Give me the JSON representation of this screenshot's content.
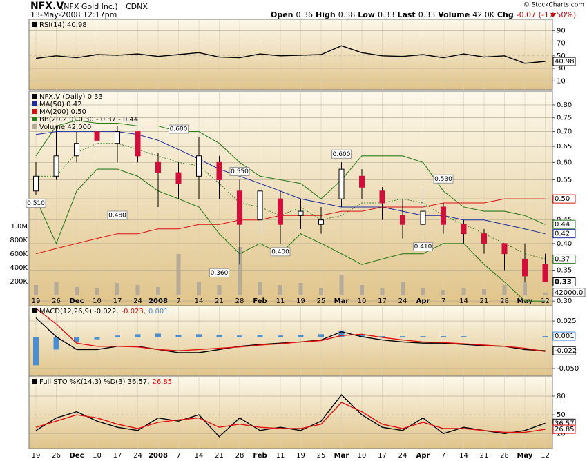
{
  "header": {
    "symbol": "NFX.V",
    "name": "(NFX Gold Inc.)",
    "exchange": "CDNX",
    "timestamp": "13-May-2008 12:17pm",
    "quote": [
      "Open",
      "0.36",
      "High",
      "0.38",
      "Low",
      "0.33",
      "Last",
      "0.33",
      "Volume",
      "42.0K",
      "Chg",
      "-0.07 (-17.50%)"
    ],
    "copyright": "© StockCharts.com"
  },
  "chart_data": [
    {
      "type": "line",
      "series": [
        {
          "name": "RSI(14) 40.98",
          "color": "#000000",
          "values": [
            46,
            50,
            47,
            52,
            51,
            53,
            49,
            52,
            55,
            48,
            47,
            53,
            50,
            51,
            52,
            66,
            55,
            50,
            49,
            52,
            47,
            53,
            48,
            50,
            38,
            41
          ]
        }
      ],
      "ylim": [
        -4,
        108
      ],
      "yticks": [
        10,
        30,
        50,
        70,
        90
      ],
      "grid": true,
      "value_boxes": [
        {
          "value": 40.98,
          "label": "40.98"
        }
      ]
    },
    {
      "type": "candlestick",
      "title": "NFX.V (Daily) 0.33",
      "log_scale": true,
      "categories": [
        "19",
        "26",
        "Dec",
        "10",
        "17",
        "24",
        "2008",
        "7",
        "14",
        "21",
        "28",
        "Feb",
        "11",
        "19",
        "25",
        "Mar",
        "10",
        "17",
        "24",
        "Apr",
        "7",
        "14",
        "21",
        "28",
        "May",
        "12"
      ],
      "open": [
        0.52,
        0.56,
        0.62,
        0.7,
        0.66,
        0.7,
        0.6,
        0.57,
        0.56,
        0.6,
        0.52,
        0.45,
        0.5,
        0.46,
        0.44,
        0.5,
        0.56,
        0.52,
        0.46,
        0.44,
        0.48,
        0.44,
        0.42,
        0.4,
        0.37,
        0.36
      ],
      "high": [
        0.6,
        0.72,
        0.7,
        0.72,
        0.72,
        0.7,
        0.63,
        0.6,
        0.68,
        0.62,
        0.55,
        0.55,
        0.52,
        0.5,
        0.48,
        0.6,
        0.58,
        0.53,
        0.5,
        0.53,
        0.49,
        0.45,
        0.43,
        0.4,
        0.4,
        0.38
      ],
      "low": [
        0.51,
        0.55,
        0.6,
        0.64,
        0.6,
        0.6,
        0.48,
        0.5,
        0.5,
        0.5,
        0.36,
        0.42,
        0.4,
        0.43,
        0.42,
        0.48,
        0.5,
        0.45,
        0.41,
        0.41,
        0.42,
        0.4,
        0.38,
        0.35,
        0.33,
        0.33
      ],
      "close": [
        0.56,
        0.62,
        0.66,
        0.67,
        0.7,
        0.62,
        0.57,
        0.54,
        0.62,
        0.55,
        0.44,
        0.52,
        0.44,
        0.47,
        0.45,
        0.58,
        0.53,
        0.49,
        0.44,
        0.47,
        0.44,
        0.42,
        0.4,
        0.38,
        0.34,
        0.33
      ],
      "up_color": "#ffffff",
      "down_color": "#d0103a",
      "series": [
        {
          "name": "MA(50) 0.42",
          "color": "#1a2a9c",
          "values": [
            0.69,
            0.7,
            0.7,
            0.7,
            0.7,
            0.69,
            0.67,
            0.64,
            0.61,
            0.58,
            0.56,
            0.54,
            0.52,
            0.5,
            0.49,
            0.48,
            0.48,
            0.48,
            0.47,
            0.46,
            0.46,
            0.45,
            0.45,
            0.44,
            0.43,
            0.42
          ]
        },
        {
          "name": "MA(200) 0.50",
          "color": "#d81010",
          "values": [
            0.38,
            0.39,
            0.4,
            0.41,
            0.42,
            0.42,
            0.43,
            0.43,
            0.44,
            0.44,
            0.45,
            0.45,
            0.46,
            0.46,
            0.46,
            0.47,
            0.47,
            0.48,
            0.48,
            0.48,
            0.49,
            0.49,
            0.49,
            0.5,
            0.5,
            0.5
          ]
        }
      ],
      "bands": {
        "name": "BB(20,2.0) 0.30 - 0.37 - 0.44",
        "color": "#2e7d1f",
        "upper": [
          0.62,
          0.72,
          0.74,
          0.73,
          0.73,
          0.72,
          0.72,
          0.7,
          0.7,
          0.66,
          0.6,
          0.56,
          0.55,
          0.54,
          0.5,
          0.55,
          0.62,
          0.62,
          0.62,
          0.6,
          0.52,
          0.48,
          0.47,
          0.47,
          0.46,
          0.44
        ],
        "middle": [
          0.56,
          0.56,
          0.63,
          0.66,
          0.66,
          0.64,
          0.62,
          0.6,
          0.59,
          0.54,
          0.49,
          0.48,
          0.46,
          0.48,
          0.45,
          0.46,
          0.49,
          0.49,
          0.5,
          0.49,
          0.46,
          0.44,
          0.42,
          0.4,
          0.38,
          0.37
        ],
        "lower": [
          0.5,
          0.4,
          0.52,
          0.58,
          0.58,
          0.56,
          0.52,
          0.5,
          0.48,
          0.42,
          0.38,
          0.4,
          0.38,
          0.42,
          0.4,
          0.38,
          0.36,
          0.37,
          0.38,
          0.38,
          0.4,
          0.4,
          0.36,
          0.33,
          0.3,
          0.3
        ]
      },
      "volume": {
        "name": "Volume 42,000",
        "color": "#b5ab98",
        "values": [
          150000,
          200000,
          120000,
          100000,
          180000,
          150000,
          120000,
          600000,
          200000,
          150000,
          700000,
          200000,
          150000,
          180000,
          100000,
          300000,
          150000,
          100000,
          200000,
          100000,
          80000,
          100000,
          90000,
          150000,
          200000,
          42000
        ],
        "ylim": [
          0,
          2960000
        ],
        "yticks": [
          {
            "value": 200000,
            "label": "200K"
          },
          {
            "value": 400000,
            "label": "400K"
          },
          {
            "value": 600000,
            "label": "600K"
          },
          {
            "value": 800000,
            "label": "800K"
          },
          {
            "value": 1000000,
            "label": "1.0M"
          }
        ],
        "value_box": {
          "value": 42000,
          "label": "42000.0"
        }
      },
      "annotations": [
        {
          "value": 0.51,
          "label": "0.510"
        },
        {
          "value": 0.48,
          "label": "0.480"
        },
        {
          "value": 0.68,
          "label": "0.680"
        },
        {
          "value": 0.36,
          "label": "0.360"
        },
        {
          "value": 0.55,
          "label": "0.550"
        },
        {
          "value": 0.4,
          "label": "0.400"
        },
        {
          "value": 0.6,
          "label": "0.600"
        },
        {
          "value": 0.41,
          "label": "0.410"
        },
        {
          "value": 0.53,
          "label": "0.530"
        }
      ],
      "ylim": [
        0.293,
        0.857
      ],
      "yticks": [
        {
          "value": 0.3,
          "label": "0.30"
        },
        0.35,
        {
          "value": 0.4,
          "label": "0.40"
        },
        0.45,
        {
          "value": 0.5,
          "label": "0.50"
        },
        0.55,
        {
          "value": 0.6,
          "label": "0.60"
        },
        0.65,
        {
          "value": 0.7,
          "label": "0.70"
        },
        0.75,
        {
          "value": 0.8,
          "label": "0.80"
        }
      ],
      "grid": true,
      "value_boxes": [
        {
          "value": 0.5,
          "label": "0.50"
        },
        {
          "value": 0.44,
          "label": "0.44"
        },
        {
          "value": 0.42,
          "label": "0.42"
        },
        {
          "value": 0.37,
          "label": "0.37"
        },
        {
          "value": 0.33,
          "label": "0.33"
        }
      ]
    },
    {
      "type": "macd",
      "series": [
        {
          "name": "MACD(12,26,9) -0.022,",
          "color": "#000000",
          "values": [
            0.03,
            0.0,
            -0.02,
            -0.02,
            -0.015,
            -0.015,
            -0.02,
            -0.025,
            -0.025,
            -0.02,
            -0.015,
            -0.012,
            -0.01,
            -0.008,
            -0.005,
            0.008,
            0.0,
            -0.005,
            -0.008,
            -0.01,
            -0.01,
            -0.012,
            -0.014,
            -0.015,
            -0.02,
            -0.022
          ]
        },
        {
          "name": "-0.023,",
          "color": "#e01010",
          "values": [
            0.045,
            0.02,
            -0.01,
            -0.015,
            -0.015,
            -0.016,
            -0.02,
            -0.022,
            -0.02,
            -0.018,
            -0.016,
            -0.013,
            -0.011,
            -0.008,
            -0.006,
            0.002,
            0.004,
            -0.001,
            -0.005,
            -0.008,
            -0.009,
            -0.011,
            -0.013,
            -0.015,
            -0.018,
            -0.023
          ]
        }
      ],
      "histogram": {
        "name": "0.001",
        "color": "#4a8fd0",
        "values": [
          -0.045,
          -0.02,
          -0.008,
          -0.004,
          0.002,
          0.004,
          0.005,
          0.003,
          0.004,
          0.003,
          0.002,
          0.003,
          0.002,
          0.003,
          0.004,
          0.01,
          0.004,
          0.001,
          0.001,
          0.001,
          0.001,
          0.001,
          0.0,
          -0.001,
          0.0,
          0.001
        ]
      },
      "ylim": [
        -0.062,
        0.049
      ],
      "yticks": [
        0.025,
        {
          "value": -0.05,
          "label": "-0.050"
        }
      ],
      "grid": true,
      "value_boxes": [
        {
          "value": 0.001,
          "label": "0.001"
        },
        {
          "value": -0.022,
          "label": "-0.022"
        }
      ]
    },
    {
      "type": "line",
      "categories": [
        "19",
        "26",
        "Dec",
        "10",
        "17",
        "24",
        "2008",
        "7",
        "14",
        "21",
        "28",
        "Feb",
        "11",
        "19",
        "25",
        "Mar",
        "10",
        "17",
        "24",
        "Apr",
        "7",
        "14",
        "21",
        "28",
        "May",
        "12"
      ],
      "series": [
        {
          "name": "Full STO %K(14,3) %D(3) 36.57,",
          "color": "#000000",
          "values": [
            25,
            45,
            55,
            40,
            30,
            25,
            45,
            40,
            50,
            15,
            45,
            25,
            30,
            25,
            40,
            82,
            50,
            30,
            25,
            45,
            20,
            30,
            25,
            20,
            25,
            36.57
          ]
        },
        {
          "name": "26.85",
          "color": "#e01010",
          "values": [
            30,
            40,
            50,
            45,
            35,
            28,
            38,
            42,
            45,
            30,
            35,
            30,
            28,
            28,
            35,
            70,
            55,
            35,
            28,
            38,
            28,
            28,
            25,
            22,
            22,
            26.85
          ]
        }
      ],
      "ylim": [
        -4,
        112
      ],
      "yticks": [
        20,
        50,
        80
      ],
      "grid": true,
      "value_boxes": [
        {
          "value": 36.57,
          "label": "36.57"
        },
        {
          "value": 26.85,
          "label": "26.85"
        }
      ]
    }
  ]
}
